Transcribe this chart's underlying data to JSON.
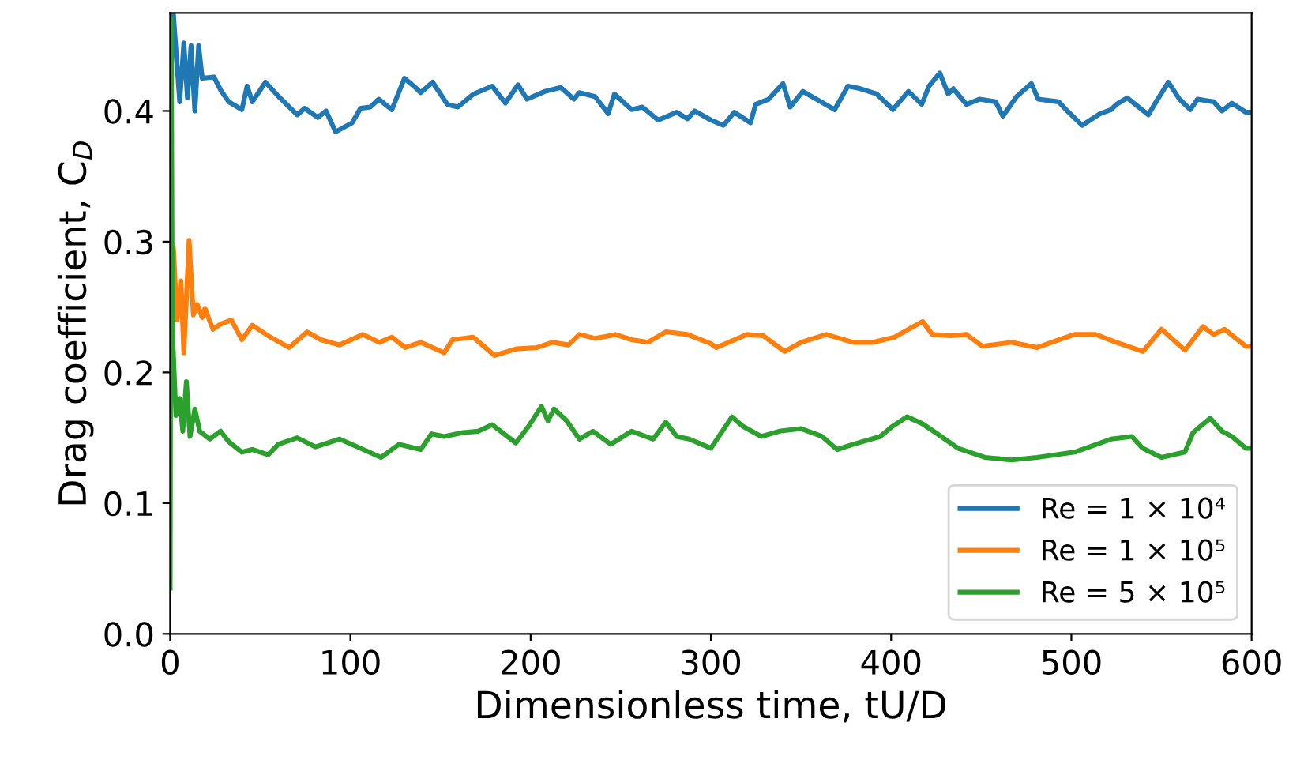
{
  "chart_data": {
    "type": "line",
    "xlabel": "Dimensionless time, tU/D",
    "ylabel": "Drag coefficient, C$_{D}$",
    "xlim": [
      0,
      600
    ],
    "ylim": [
      0,
      0.475
    ],
    "xticks": [
      0,
      100,
      200,
      300,
      400,
      500,
      600
    ],
    "yticks": [
      {
        "value": 0,
        "label": "0.0"
      },
      0.1,
      0.2,
      0.3,
      0.4
    ],
    "grid": false,
    "legend": "bottom right",
    "marker": "none",
    "line_style": "solid",
    "series": [
      {
        "name": "Re = 1 × 10⁴",
        "color": "#1f77b4",
        "x": [
          0,
          1,
          1.8,
          5.3,
          7.6,
          9.6,
          11.6,
          13.7,
          15.8,
          17.8,
          24.3,
          28,
          32.5,
          39.8,
          42.7,
          45.6,
          52.9,
          60.2,
          70.5,
          74.6,
          82,
          86.5,
          91.8,
          101,
          105.6,
          111,
          115.8,
          123,
          130,
          136,
          139,
          145.6,
          153.8,
          159.6,
          168.4,
          178.7,
          186,
          193,
          198,
          208,
          216.7,
          224,
          227,
          235.7,
          243,
          246.5,
          256,
          262,
          270.8,
          281,
          287,
          291,
          300,
          307,
          313,
          322,
          324.8,
          332,
          340,
          344,
          351,
          368.7,
          376,
          383,
          392,
          401,
          409.6,
          417,
          421,
          427,
          431.6,
          434.5,
          441.8,
          449,
          458,
          462,
          469.6,
          477.8,
          481.6,
          493,
          497,
          506,
          516,
          522,
          525,
          531,
          542.7,
          547,
          553.8,
          560,
          566,
          570,
          579,
          583.6,
          589,
          596.8,
          600
        ],
        "values": [
          0.3,
          0.475,
          0.474,
          0.407,
          0.452,
          0.41,
          0.45,
          0.4,
          0.45,
          0.425,
          0.426,
          0.416,
          0.407,
          0.401,
          0.419,
          0.407,
          0.422,
          0.411,
          0.397,
          0.402,
          0.395,
          0.4,
          0.384,
          0.391,
          0.402,
          0.403,
          0.409,
          0.401,
          0.425,
          0.418,
          0.414,
          0.422,
          0.405,
          0.403,
          0.413,
          0.419,
          0.406,
          0.42,
          0.409,
          0.415,
          0.418,
          0.409,
          0.414,
          0.411,
          0.398,
          0.413,
          0.401,
          0.403,
          0.393,
          0.399,
          0.394,
          0.4,
          0.393,
          0.389,
          0.399,
          0.391,
          0.405,
          0.409,
          0.421,
          0.403,
          0.415,
          0.401,
          0.419,
          0.417,
          0.413,
          0.401,
          0.415,
          0.405,
          0.419,
          0.429,
          0.413,
          0.417,
          0.405,
          0.409,
          0.407,
          0.396,
          0.411,
          0.421,
          0.409,
          0.407,
          0.401,
          0.389,
          0.398,
          0.401,
          0.405,
          0.41,
          0.397,
          0.407,
          0.422,
          0.409,
          0.401,
          0.409,
          0.407,
          0.4,
          0.406,
          0.399,
          0.399
        ]
      },
      {
        "name": "Re = 1 × 10⁵",
        "color": "#ff7f0e",
        "x": [
          0,
          1.8,
          3.8,
          6,
          7.6,
          10.5,
          12.9,
          15,
          17.8,
          19.3,
          23.7,
          28,
          34,
          39.8,
          45.6,
          54.4,
          66,
          76,
          83.6,
          93.9,
          107,
          116,
          123,
          130.4,
          139,
          152,
          156.6,
          168,
          180,
          192,
          203.5,
          212,
          221,
          227,
          236,
          247,
          256,
          265,
          275,
          287,
          300,
          303,
          320,
          329,
          341,
          350,
          364,
          379,
          390,
          402,
          409.6,
          417.5,
          422.8,
          433,
          441.8,
          450.6,
          466.7,
          481,
          493,
          501.8,
          513.5,
          525,
          539.7,
          550,
          563,
          573,
          579,
          585,
          596.8,
          600
        ],
        "values": [
          0.28,
          0.296,
          0.24,
          0.27,
          0.215,
          0.301,
          0.244,
          0.252,
          0.242,
          0.249,
          0.233,
          0.237,
          0.24,
          0.225,
          0.236,
          0.228,
          0.219,
          0.231,
          0.225,
          0.221,
          0.229,
          0.223,
          0.227,
          0.219,
          0.223,
          0.215,
          0.225,
          0.227,
          0.213,
          0.218,
          0.219,
          0.223,
          0.221,
          0.229,
          0.226,
          0.229,
          0.225,
          0.223,
          0.231,
          0.229,
          0.222,
          0.219,
          0.229,
          0.228,
          0.216,
          0.223,
          0.229,
          0.223,
          0.223,
          0.227,
          0.233,
          0.239,
          0.229,
          0.228,
          0.229,
          0.22,
          0.223,
          0.219,
          0.225,
          0.229,
          0.229,
          0.223,
          0.216,
          0.233,
          0.217,
          0.235,
          0.229,
          0.233,
          0.22,
          0.22
        ]
      },
      {
        "name": "Re = 5 × 10⁵",
        "color": "#2ca02c",
        "x": [
          0,
          0.6,
          1.2,
          3.2,
          5.3,
          7,
          9,
          11,
          13.7,
          16.4,
          22,
          28,
          32.5,
          39.8,
          45.6,
          54.4,
          60,
          70.5,
          80.7,
          94,
          104,
          117,
          127,
          139,
          145,
          152,
          162.6,
          171,
          178.7,
          191.8,
          199,
          206,
          209.6,
          213,
          220,
          227,
          234.6,
          244.4,
          256,
          268,
          275,
          281,
          288,
          300,
          311.7,
          317.5,
          328,
          338,
          350,
          361.7,
          370,
          379,
          394,
          401,
          408.8,
          417,
          425.7,
          437,
          452,
          466.7,
          481,
          501.8,
          522,
          533.6,
          539.5,
          550,
          563,
          567.5,
          577,
          583.6,
          589,
          596.8,
          600
        ],
        "values": [
          0.035,
          0.47,
          0.234,
          0.167,
          0.18,
          0.155,
          0.193,
          0.151,
          0.172,
          0.155,
          0.149,
          0.155,
          0.147,
          0.139,
          0.141,
          0.137,
          0.145,
          0.15,
          0.143,
          0.149,
          0.143,
          0.135,
          0.145,
          0.141,
          0.153,
          0.151,
          0.154,
          0.155,
          0.16,
          0.146,
          0.159,
          0.174,
          0.163,
          0.172,
          0.163,
          0.149,
          0.155,
          0.145,
          0.155,
          0.149,
          0.162,
          0.151,
          0.149,
          0.142,
          0.166,
          0.159,
          0.151,
          0.155,
          0.157,
          0.151,
          0.141,
          0.145,
          0.151,
          0.159,
          0.166,
          0.161,
          0.153,
          0.142,
          0.135,
          0.133,
          0.135,
          0.139,
          0.149,
          0.151,
          0.142,
          0.135,
          0.139,
          0.154,
          0.165,
          0.155,
          0.151,
          0.142,
          0.142
        ]
      }
    ]
  }
}
